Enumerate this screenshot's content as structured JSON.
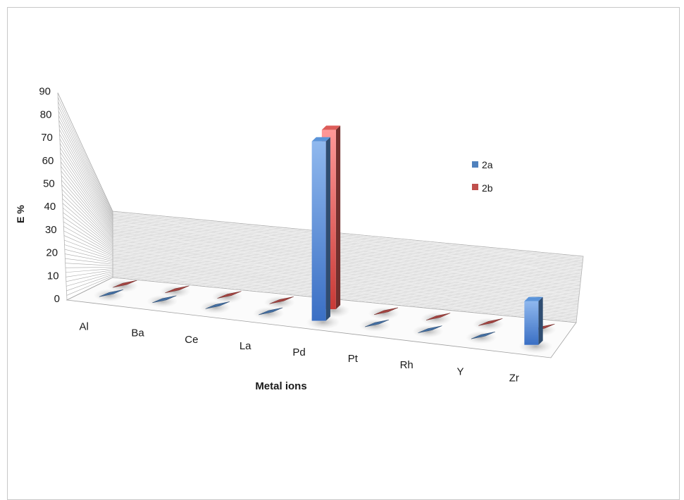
{
  "chart_data": {
    "type": "bar",
    "style": "3d-clustered-column",
    "xlabel": "Metal ions",
    "ylabel": "E %",
    "ylim": [
      0,
      90
    ],
    "yticks": [
      0,
      10,
      20,
      30,
      40,
      50,
      60,
      70,
      80,
      90
    ],
    "grid": true,
    "legend_position": "right",
    "categories": [
      "Al",
      "Ba",
      "Ce",
      "La",
      "Pd",
      "Pt",
      "Rh",
      "Y",
      "Zr"
    ],
    "series": [
      {
        "name": "2a",
        "color": "#4f81bd",
        "values": [
          0,
          0,
          0,
          0,
          82,
          0,
          0,
          0,
          20
        ]
      },
      {
        "name": "2b",
        "color": "#c0504d",
        "values": [
          0,
          0,
          0,
          0,
          82,
          0,
          0,
          0,
          0
        ]
      }
    ]
  }
}
